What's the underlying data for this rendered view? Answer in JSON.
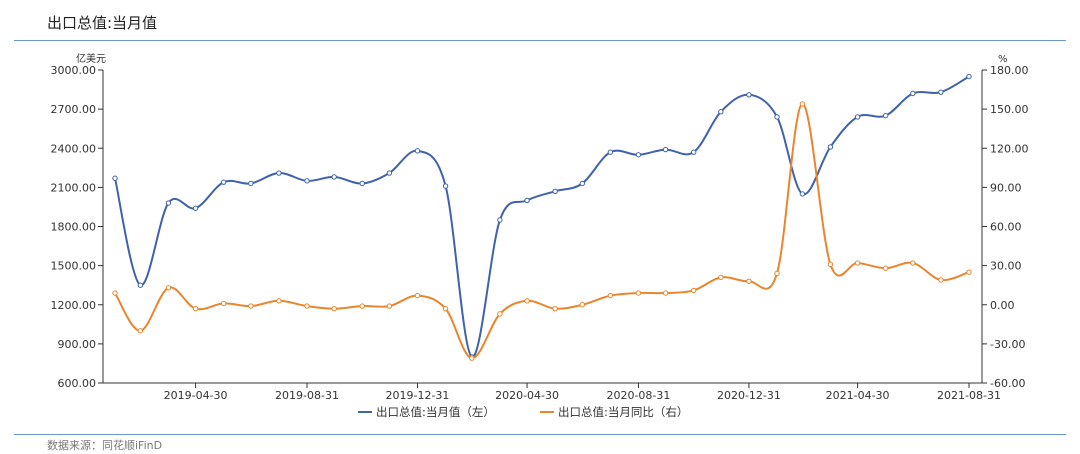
{
  "header": {
    "title": "出口总值:当月值"
  },
  "footer": {
    "source": "数据来源：同花顺iFinD"
  },
  "chart_data": {
    "type": "line",
    "title": "出口总值:当月值",
    "left_axis": {
      "unit": "亿美元",
      "ylim": [
        600,
        3000
      ],
      "ticks": [
        600,
        900,
        1200,
        1500,
        1800,
        2100,
        2400,
        2700,
        3000
      ],
      "tick_labels": [
        "600.00",
        "900.00",
        "1200.00",
        "1500.00",
        "1800.00",
        "2100.00",
        "2400.00",
        "2700.00",
        "3000.00"
      ]
    },
    "right_axis": {
      "unit": "%",
      "ylim": [
        -60,
        180
      ],
      "ticks": [
        -60,
        -30,
        0,
        30,
        60,
        90,
        120,
        150,
        180
      ],
      "tick_labels": [
        "-60.00",
        "-30.00",
        "0.00",
        "30.00",
        "60.00",
        "90.00",
        "120.00",
        "150.00",
        "180.00"
      ]
    },
    "x": [
      "2019-01-31",
      "2019-02-28",
      "2019-03-31",
      "2019-04-30",
      "2019-05-31",
      "2019-06-30",
      "2019-07-31",
      "2019-08-31",
      "2019-09-30",
      "2019-10-31",
      "2019-11-30",
      "2019-12-31",
      "2020-01-31",
      "2020-02-29",
      "2020-03-31",
      "2020-04-30",
      "2020-05-31",
      "2020-06-30",
      "2020-07-31",
      "2020-08-31",
      "2020-09-30",
      "2020-10-31",
      "2020-11-30",
      "2020-12-31",
      "2021-01-31",
      "2021-02-28",
      "2021-03-31",
      "2021-04-30",
      "2021-05-31",
      "2021-06-30",
      "2021-07-31",
      "2021-08-31"
    ],
    "x_tick_labels": [
      "2019-04-30",
      "2019-08-31",
      "2019-12-31",
      "2020-04-30",
      "2020-08-31",
      "2020-12-31",
      "2021-04-30",
      "2021-08-31"
    ],
    "series": [
      {
        "name": "出口总值:当月值（左）",
        "axis": "left",
        "color": "#3f62ad",
        "values": [
          2170,
          1350,
          1980,
          1940,
          2140,
          2130,
          2210,
          2150,
          2180,
          2130,
          2210,
          2380,
          2110,
          800,
          1850,
          2000,
          2070,
          2130,
          2370,
          2350,
          2390,
          2370,
          2680,
          2810,
          2640,
          2050,
          2410,
          2640,
          2650,
          2820,
          2830,
          2950
        ]
      },
      {
        "name": "出口总值:当月同比（右）",
        "axis": "right",
        "color": "#e9862d",
        "values": [
          9,
          -20,
          13,
          -3,
          1,
          -1,
          3,
          -1,
          -3,
          -1,
          -1,
          7,
          -3,
          -41,
          -7,
          3,
          -3,
          0,
          7,
          9,
          9,
          11,
          21,
          18,
          24,
          154,
          31,
          32,
          28,
          32,
          19,
          25
        ]
      }
    ],
    "legend": {
      "position": "bottom-center"
    },
    "grid": false
  }
}
